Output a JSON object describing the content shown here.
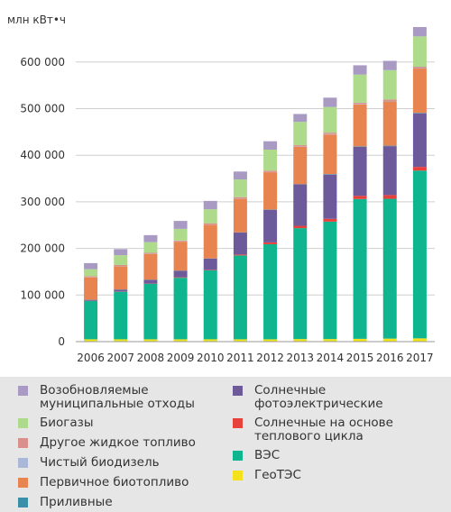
{
  "chart_data": {
    "type": "bar",
    "stacked": true,
    "unit_label": "млн кВт•ч",
    "categories": [
      "2006",
      "2007",
      "2008",
      "2009",
      "2010",
      "2011",
      "2012",
      "2013",
      "2014",
      "2015",
      "2016",
      "2017"
    ],
    "yticks": [
      "0",
      "100 000",
      "200 000",
      "300 000",
      "400 000",
      "500 000",
      "600 000"
    ],
    "ylim": [
      0,
      680000
    ],
    "grid": true,
    "series": [
      {
        "name": "ГеоТЭС",
        "color": "#f3e21b",
        "values": [
          5000,
          5000,
          5000,
          5000,
          5000,
          5000,
          5000,
          5500,
          5500,
          6000,
          6500,
          7000
        ]
      },
      {
        "name": "ВЭС",
        "color": "#0fb58f",
        "values": [
          82000,
          102000,
          119000,
          132000,
          148000,
          180000,
          204000,
          238000,
          252000,
          300000,
          300000,
          360000
        ]
      },
      {
        "name": "Солнечные на основе теплового цикла",
        "color": "#e8413c",
        "values": [
          500,
          500,
          500,
          1000,
          1000,
          2000,
          4000,
          5000,
          6000,
          7000,
          8000,
          8000
        ]
      },
      {
        "name": "Солнечные фотоэлектрические",
        "color": "#6d5a9a",
        "values": [
          2000,
          4000,
          8000,
          14000,
          24000,
          47000,
          70000,
          89000,
          95000,
          105000,
          105000,
          115000
        ]
      },
      {
        "name": "Приливные",
        "color": "#3a8fa9",
        "values": [
          500,
          500,
          500,
          500,
          500,
          500,
          500,
          500,
          1000,
          1000,
          1000,
          1000
        ]
      },
      {
        "name": "Первичное биотопливо",
        "color": "#e8844f",
        "values": [
          48000,
          50000,
          55000,
          62000,
          72000,
          72000,
          80000,
          80000,
          85000,
          90000,
          95000,
          95000
        ]
      },
      {
        "name": "Чистый биодизель",
        "color": "#aab7d6",
        "values": [
          500,
          500,
          500,
          500,
          500,
          500,
          500,
          500,
          1000,
          1000,
          1000,
          1000
        ]
      },
      {
        "name": "Другое жидкое топливо",
        "color": "#d98f8c",
        "values": [
          2000,
          2000,
          2000,
          2000,
          3000,
          3000,
          3000,
          3000,
          3000,
          3000,
          3000,
          3000
        ]
      },
      {
        "name": "Биогазы",
        "color": "#addb8b",
        "values": [
          15000,
          21000,
          23000,
          25000,
          30000,
          38000,
          45000,
          50000,
          55000,
          60000,
          63000,
          65000
        ]
      },
      {
        "name": "Возобновляемые муниципальные отходы",
        "color": "#a99ac4",
        "values": [
          13000,
          13000,
          15000,
          17000,
          18000,
          17000,
          18000,
          17000,
          20000,
          20000,
          20000,
          20000
        ]
      }
    ]
  },
  "legend_text": {
    "msw": "Возобновляемые\nмуниципальные отходы",
    "biogas": "Биогазы",
    "other_liquid": "Другое жидкое топливо",
    "biodiesel": "Чистый биодизель",
    "primary_bio": "Первичное биотопливо",
    "tidal": "Приливные",
    "pv": "Солнечные\nфотоэлектрические",
    "csp": "Солнечные на основе\nтеплового цикла",
    "wind": "ВЭС",
    "geo": "ГеоТЭС"
  },
  "legend_colors": {
    "msw": "#a99ac4",
    "biogas": "#addb8b",
    "other_liquid": "#d98f8c",
    "biodiesel": "#aab7d6",
    "primary_bio": "#e8844f",
    "tidal": "#3a8fa9",
    "pv": "#6d5a9a",
    "csp": "#e8413c",
    "wind": "#0fb58f",
    "geo": "#f3e21b"
  }
}
